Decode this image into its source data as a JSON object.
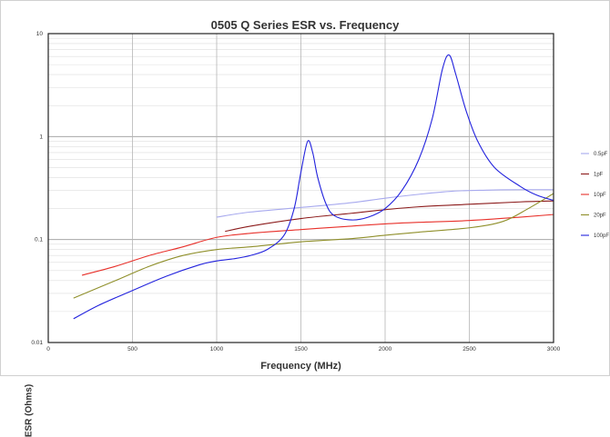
{
  "chart_data": {
    "type": "line",
    "title": "0505 Q Series ESR vs. Frequency",
    "xlabel": "Frequency (MHz)",
    "ylabel": "ESR (Ohms)",
    "xlim": [
      0,
      3000
    ],
    "ylim": [
      0.01,
      10
    ],
    "yscale": "log",
    "grid": true,
    "legend_position": "right",
    "x_ticks": [
      0,
      500,
      1000,
      1500,
      2000,
      2500,
      3000
    ],
    "y_ticks": [
      0.01,
      0.1,
      1,
      10
    ],
    "x_tick_labels": [
      "0",
      "500",
      "1000",
      "1500",
      "2000",
      "2500",
      "3000"
    ],
    "y_tick_labels": [
      "0.01",
      "0.1",
      "1",
      "10"
    ],
    "series": [
      {
        "name": "0.5pF",
        "color": "#a7a9ee",
        "points": [
          [
            1000,
            0.165
          ],
          [
            1200,
            0.185
          ],
          [
            1500,
            0.205
          ],
          [
            1800,
            0.228
          ],
          [
            2000,
            0.252
          ],
          [
            2200,
            0.275
          ],
          [
            2400,
            0.295
          ],
          [
            2600,
            0.302
          ],
          [
            2800,
            0.305
          ],
          [
            3000,
            0.305
          ]
        ]
      },
      {
        "name": "1pF",
        "color": "#8b1a1a",
        "points": [
          [
            1050,
            0.12
          ],
          [
            1200,
            0.135
          ],
          [
            1500,
            0.16
          ],
          [
            1800,
            0.18
          ],
          [
            2000,
            0.195
          ],
          [
            2200,
            0.208
          ],
          [
            2500,
            0.22
          ],
          [
            2800,
            0.232
          ],
          [
            3000,
            0.237
          ]
        ]
      },
      {
        "name": "10pF",
        "color": "#e8302a",
        "points": [
          [
            200,
            0.045
          ],
          [
            400,
            0.055
          ],
          [
            600,
            0.07
          ],
          [
            800,
            0.085
          ],
          [
            1000,
            0.105
          ],
          [
            1200,
            0.115
          ],
          [
            1500,
            0.125
          ],
          [
            1800,
            0.135
          ],
          [
            2000,
            0.142
          ],
          [
            2200,
            0.147
          ],
          [
            2500,
            0.153
          ],
          [
            2800,
            0.165
          ],
          [
            3000,
            0.175
          ]
        ]
      },
      {
        "name": "20pF",
        "color": "#8f8f2a",
        "points": [
          [
            150,
            0.027
          ],
          [
            400,
            0.04
          ],
          [
            600,
            0.055
          ],
          [
            800,
            0.07
          ],
          [
            1000,
            0.08
          ],
          [
            1200,
            0.085
          ],
          [
            1500,
            0.095
          ],
          [
            1800,
            0.102
          ],
          [
            2000,
            0.11
          ],
          [
            2200,
            0.118
          ],
          [
            2500,
            0.13
          ],
          [
            2700,
            0.15
          ],
          [
            2850,
            0.2
          ],
          [
            3000,
            0.28
          ]
        ]
      },
      {
        "name": "100pF",
        "color": "#2222dd",
        "points": [
          [
            150,
            0.017
          ],
          [
            300,
            0.023
          ],
          [
            500,
            0.032
          ],
          [
            700,
            0.044
          ],
          [
            900,
            0.057
          ],
          [
            1000,
            0.062
          ],
          [
            1100,
            0.065
          ],
          [
            1200,
            0.07
          ],
          [
            1300,
            0.08
          ],
          [
            1400,
            0.11
          ],
          [
            1460,
            0.2
          ],
          [
            1500,
            0.45
          ],
          [
            1540,
            0.9
          ],
          [
            1570,
            0.7
          ],
          [
            1600,
            0.4
          ],
          [
            1650,
            0.22
          ],
          [
            1700,
            0.17
          ],
          [
            1800,
            0.155
          ],
          [
            1900,
            0.165
          ],
          [
            2000,
            0.2
          ],
          [
            2100,
            0.3
          ],
          [
            2200,
            0.6
          ],
          [
            2280,
            1.5
          ],
          [
            2340,
            4.5
          ],
          [
            2380,
            6.2
          ],
          [
            2420,
            4.0
          ],
          [
            2480,
            1.8
          ],
          [
            2550,
            0.9
          ],
          [
            2650,
            0.5
          ],
          [
            2800,
            0.33
          ],
          [
            2900,
            0.27
          ],
          [
            3000,
            0.24
          ]
        ]
      }
    ]
  }
}
